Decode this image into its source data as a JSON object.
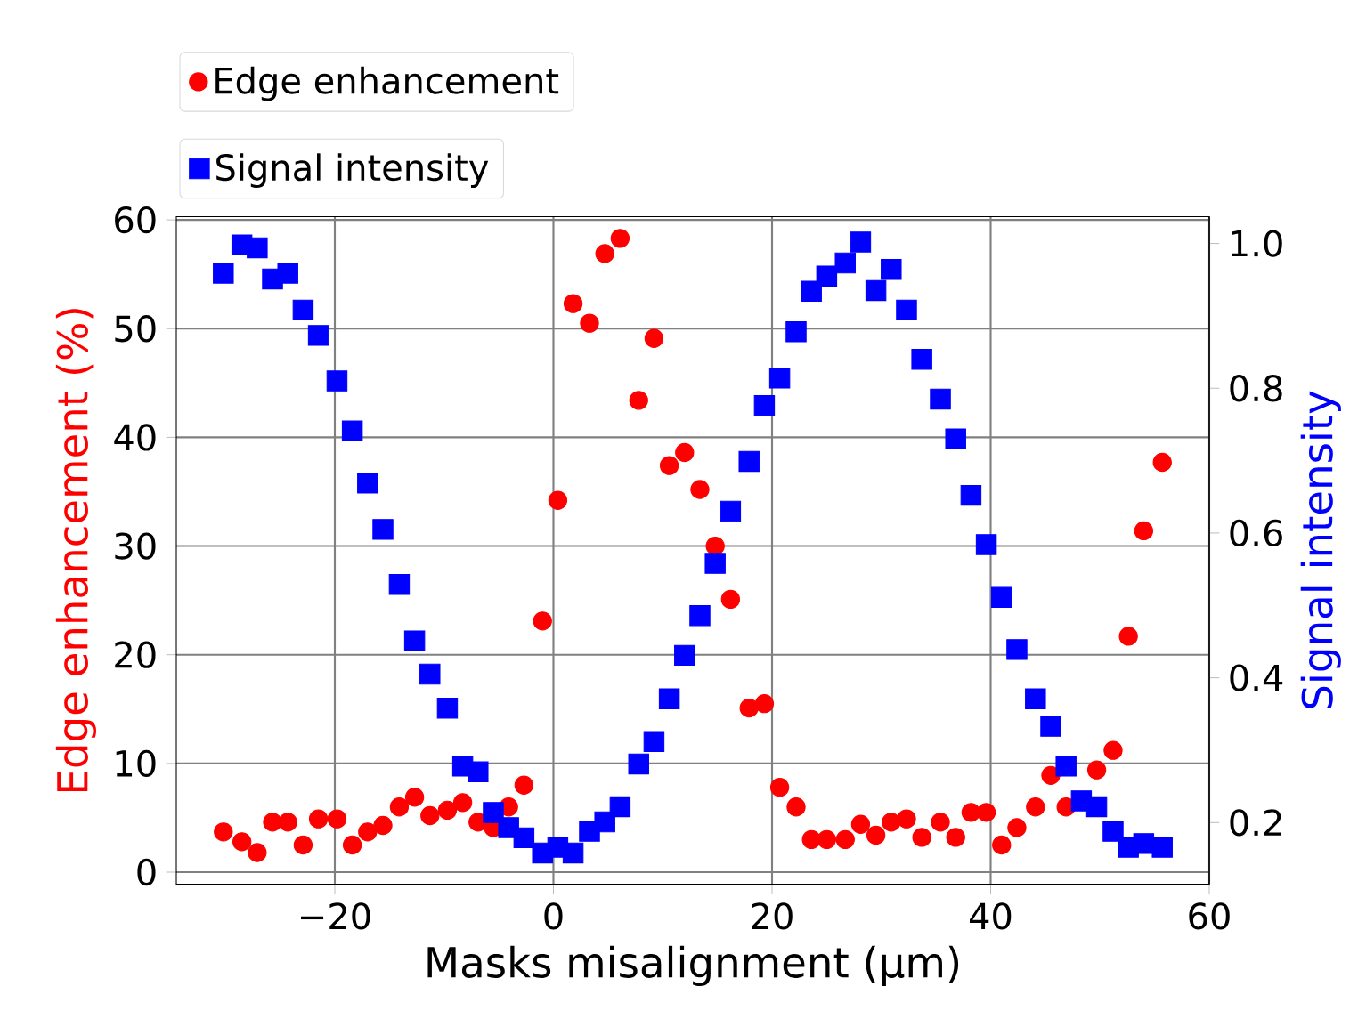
{
  "chart_data": {
    "type": "scatter",
    "xlabel": "Masks misalignment (μm)",
    "ylabel": "Edge enhancement (%)",
    "y2label": "Signal intensity",
    "x": [
      -30.2,
      -28.5,
      -27.1,
      -25.7,
      -24.3,
      -22.9,
      -21.5,
      -19.8,
      -18.4,
      -17.0,
      -15.6,
      -14.1,
      -12.7,
      -11.3,
      -9.7,
      -8.3,
      -6.9,
      -5.5,
      -4.1,
      -2.7,
      -1.0,
      0.4,
      1.8,
      3.3,
      4.7,
      6.1,
      7.8,
      9.2,
      10.6,
      12.0,
      13.4,
      14.8,
      16.2,
      17.9,
      19.3,
      20.7,
      22.2,
      23.6,
      25.0,
      26.7,
      28.1,
      29.5,
      30.9,
      32.3,
      33.7,
      35.4,
      36.8,
      38.2,
      39.6,
      41.0,
      42.4,
      44.1,
      45.5,
      46.9,
      48.3,
      49.7,
      51.2,
      52.6,
      54.0,
      55.7
    ],
    "series": [
      {
        "name": "Edge enhancement",
        "color": "#ff0000",
        "marker": "circle",
        "values": [
          3.7,
          2.8,
          1.8,
          4.6,
          4.6,
          2.5,
          4.9,
          4.9,
          2.5,
          3.7,
          4.3,
          6.0,
          6.9,
          5.2,
          5.7,
          6.4,
          4.6,
          4.1,
          6.0,
          8.0,
          23.1,
          34.2,
          52.3,
          50.5,
          56.9,
          58.3,
          43.4,
          49.1,
          37.4,
          38.6,
          35.2,
          30.0,
          25.1,
          15.1,
          15.5,
          7.8,
          6.0,
          3.0,
          3.0,
          3.0,
          4.4,
          3.4,
          4.6,
          4.9,
          3.2,
          4.6,
          3.2,
          5.5,
          5.5,
          2.5,
          4.1,
          6.0,
          8.9,
          6.0,
          null,
          9.4,
          11.2,
          21.7,
          31.4,
          37.7
        ]
      },
      {
        "name": "Signal intensity",
        "color": "#0000ff",
        "marker": "square",
        "axis": "y2",
        "values": [
          0.959,
          0.998,
          0.994,
          0.951,
          0.959,
          0.908,
          0.873,
          0.81,
          0.741,
          0.669,
          0.605,
          0.529,
          0.451,
          0.405,
          0.358,
          0.278,
          0.27,
          0.214,
          0.193,
          0.179,
          0.158,
          0.166,
          0.158,
          0.188,
          0.201,
          0.222,
          0.281,
          0.312,
          0.371,
          0.431,
          0.486,
          0.558,
          0.63,
          0.699,
          0.776,
          0.814,
          0.878,
          0.934,
          0.955,
          0.973,
          1.002,
          0.935,
          0.964,
          0.908,
          0.84,
          0.785,
          0.73,
          0.652,
          0.584,
          0.511,
          0.439,
          0.371,
          0.333,
          0.278,
          0.23,
          0.222,
          0.188,
          0.166,
          0.171,
          0.166
        ]
      }
    ],
    "xlim": [
      -34.5,
      60
    ],
    "xticks": [
      {
        "value": -20,
        "label": "−20"
      },
      0,
      20,
      40,
      60
    ],
    "ylim": [
      -1.1,
      60.3
    ],
    "yticks": [
      0,
      10,
      20,
      30,
      40,
      50,
      60
    ],
    "y2lim": [
      0.115,
      1.037
    ],
    "y2ticks": [
      {
        "value": 0.2,
        "label": "0.2"
      },
      {
        "value": 0.4,
        "label": "0.4"
      },
      {
        "value": 0.6,
        "label": "0.6"
      },
      {
        "value": 0.8,
        "label": "0.8"
      },
      {
        "value": 1.0,
        "label": "1.0"
      }
    ],
    "grid": true,
    "legend": "top left"
  }
}
